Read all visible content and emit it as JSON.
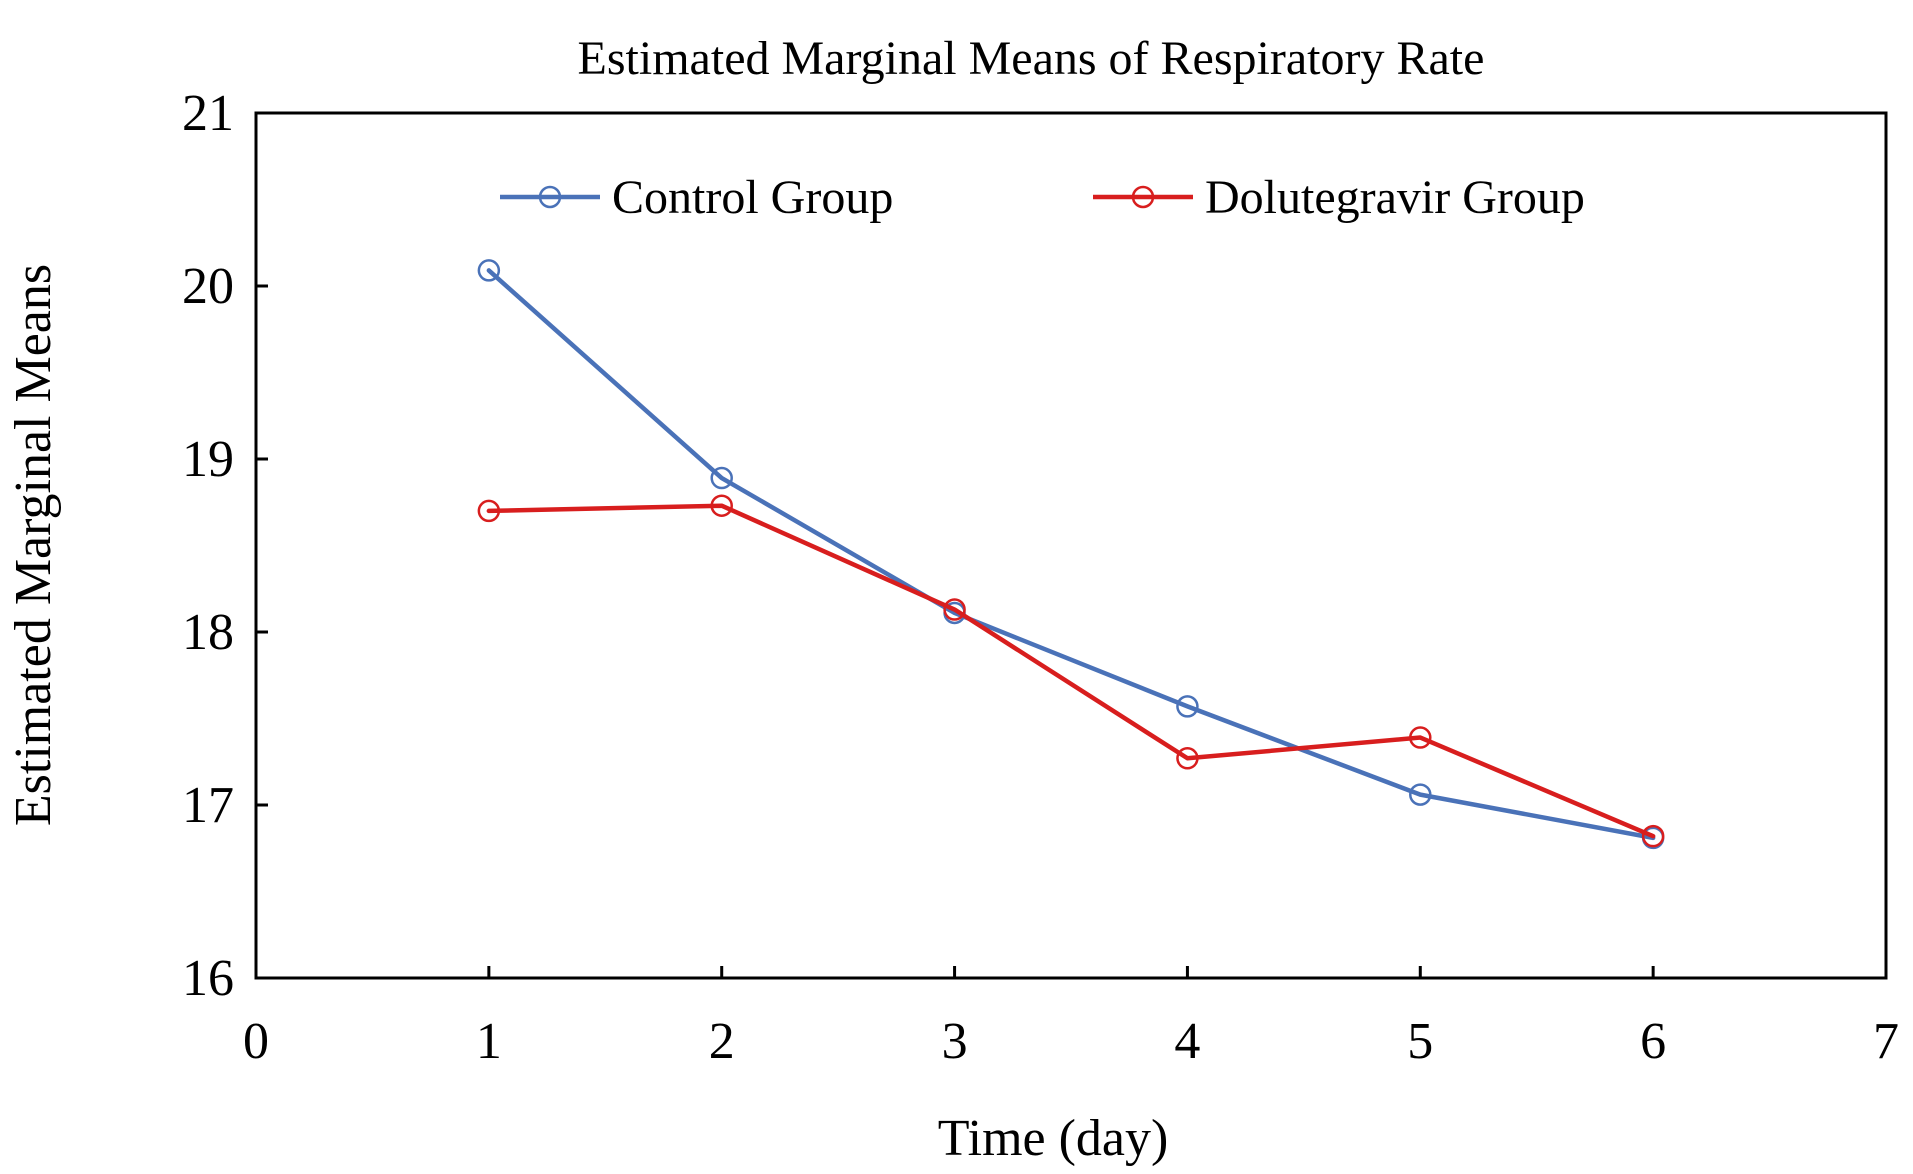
{
  "chart_data": {
    "type": "line",
    "title": "Estimated Marginal Means of Respiratory Rate",
    "xlabel": "Time (day)",
    "ylabel": "Estimated Marginal Means",
    "xlim": [
      0,
      7
    ],
    "ylim": [
      16,
      21
    ],
    "xticks": [
      "0",
      "1",
      "2",
      "3",
      "4",
      "5",
      "6",
      "7"
    ],
    "yticks": [
      "16",
      "17",
      "18",
      "19",
      "20",
      "21"
    ],
    "grid": false,
    "legend_position": "top",
    "x": [
      1,
      2,
      3,
      4,
      5,
      6
    ],
    "series": [
      {
        "name": "Control Group",
        "color": "#4a72b8",
        "values": [
          20.09,
          18.89,
          18.11,
          17.57,
          17.06,
          16.81
        ]
      },
      {
        "name": "Dolutegravir Group",
        "color": "#d81e1e",
        "values": [
          18.7,
          18.73,
          18.13,
          17.27,
          17.39,
          16.82
        ]
      }
    ]
  }
}
